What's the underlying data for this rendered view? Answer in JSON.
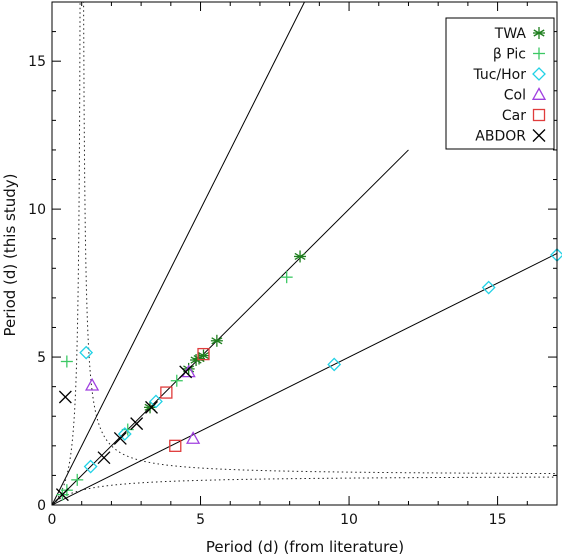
{
  "chart_data": {
    "type": "scatter",
    "title": "",
    "xlabel": "Period (d) (from literature)",
    "ylabel": "Period (d) (this study)",
    "xlim": [
      0,
      17
    ],
    "ylim": [
      0,
      17
    ],
    "xticks": [
      0,
      5,
      10,
      15
    ],
    "yticks": [
      0,
      5,
      10,
      15
    ],
    "grid": false,
    "legend_position": "top-right",
    "reference_lines": [
      {
        "style": "solid",
        "slope": 2,
        "x": [
          0,
          8.5
        ]
      },
      {
        "style": "solid",
        "slope": 1,
        "x": [
          0,
          12
        ]
      },
      {
        "style": "solid",
        "slope": 0.5,
        "x": [
          0,
          17
        ]
      }
    ],
    "beat_curves": [
      {
        "style": "dotted",
        "relation": "1/y = 1/x - 1"
      },
      {
        "style": "dotted",
        "relation": "1/y = 1/x + 1"
      }
    ],
    "series": [
      {
        "name": "TWA",
        "marker": "asterisk",
        "color": "#1e7f1e",
        "points": [
          [
            8.35,
            8.4
          ],
          [
            5.55,
            5.55
          ],
          [
            5.1,
            5.05
          ],
          [
            4.95,
            4.95
          ],
          [
            4.85,
            4.9
          ],
          [
            4.6,
            4.6
          ],
          [
            3.3,
            3.3
          ]
        ]
      },
      {
        "name": "β Pic",
        "marker": "plus",
        "color": "#3cc864",
        "points": [
          [
            0.5,
            4.85
          ],
          [
            7.9,
            7.7
          ],
          [
            2.55,
            2.55
          ],
          [
            4.2,
            4.2
          ],
          [
            0.85,
            0.85
          ],
          [
            0.5,
            0.5
          ],
          [
            0.35,
            0.35
          ]
        ]
      },
      {
        "name": "Tuc/Hor",
        "marker": "diamond",
        "color": "#22d2e6",
        "points": [
          [
            1.15,
            5.15
          ],
          [
            17.0,
            8.45
          ],
          [
            14.7,
            7.35
          ],
          [
            9.5,
            4.75
          ],
          [
            3.5,
            3.5
          ],
          [
            2.45,
            2.4
          ],
          [
            1.3,
            1.3
          ]
        ]
      },
      {
        "name": "Col",
        "marker": "triangle",
        "color": "#a040e0",
        "points": [
          [
            1.35,
            4.05
          ],
          [
            4.6,
            4.5
          ],
          [
            4.75,
            2.25
          ]
        ]
      },
      {
        "name": "Car",
        "marker": "square",
        "color": "#e03c3c",
        "points": [
          [
            5.1,
            5.1
          ],
          [
            3.85,
            3.8
          ],
          [
            4.15,
            2.0
          ]
        ]
      },
      {
        "name": "ABDOR",
        "marker": "x",
        "color": "#000000",
        "points": [
          [
            0.45,
            3.65
          ],
          [
            1.75,
            1.6
          ],
          [
            2.3,
            2.25
          ],
          [
            2.85,
            2.75
          ],
          [
            3.35,
            3.3
          ],
          [
            4.5,
            4.5
          ],
          [
            0.35,
            0.35
          ]
        ]
      }
    ]
  }
}
